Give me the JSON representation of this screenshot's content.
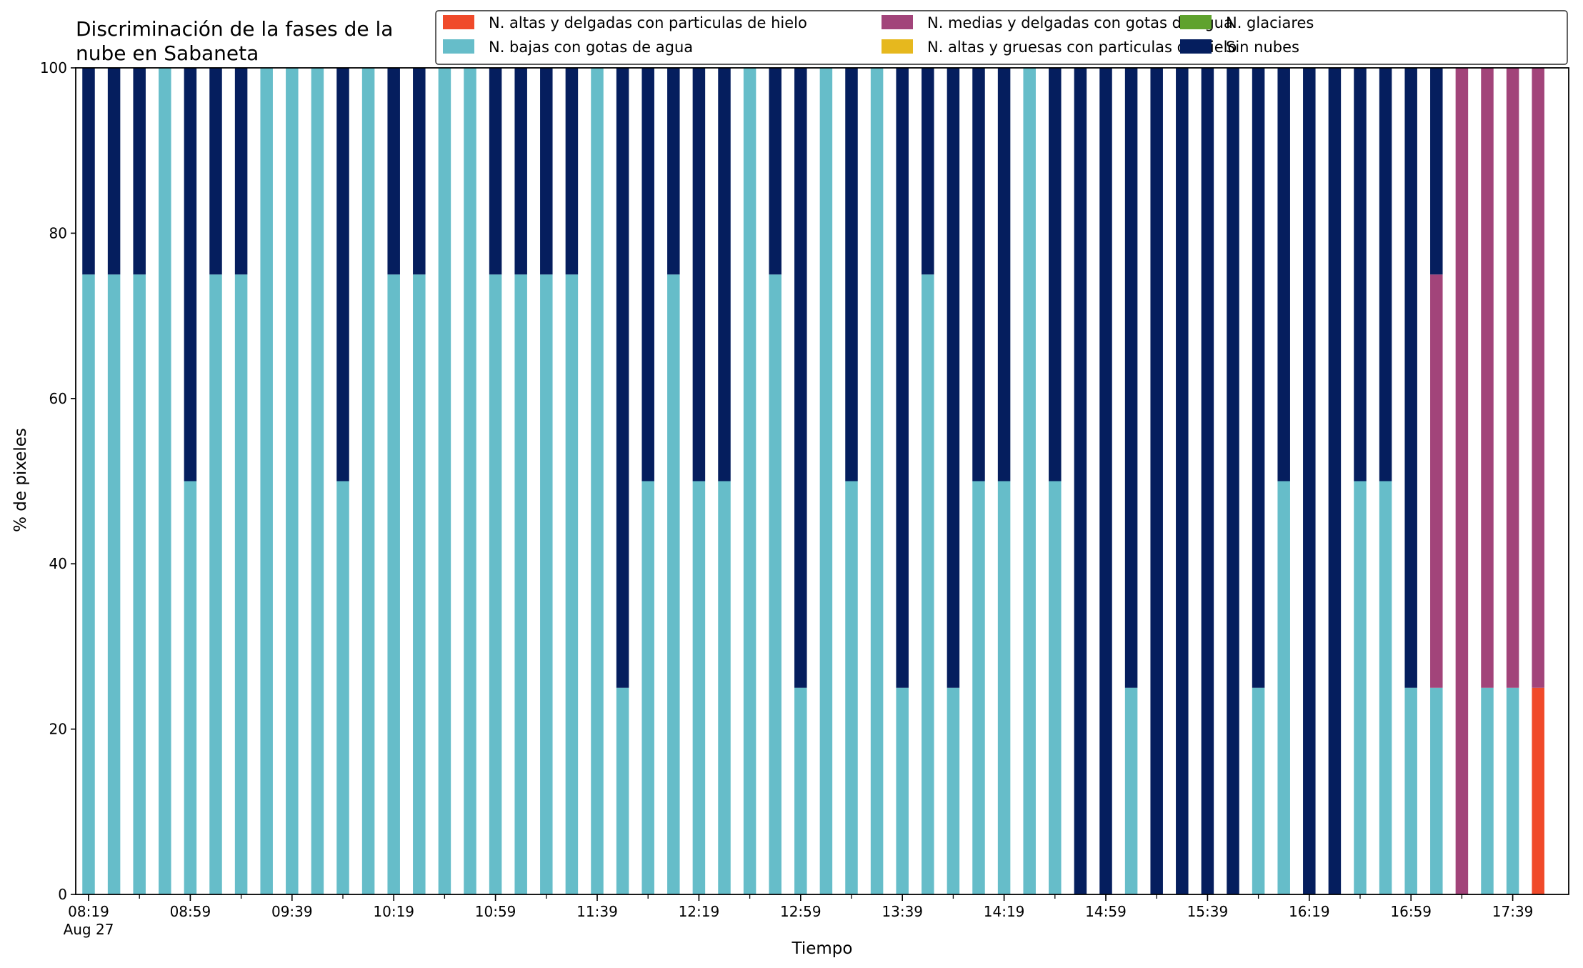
{
  "chart_data": {
    "type": "bar",
    "stacked": true,
    "title_lines": [
      "Discriminación de la fases de la",
      "nube en Sabaneta"
    ],
    "xlabel": "Tiempo",
    "ylabel": "% de pixeles",
    "ylim": [
      0,
      100
    ],
    "yticks": [
      "0",
      "20",
      "40",
      "60",
      "80",
      "100"
    ],
    "legend_position": "top-right",
    "categories": [
      "08:19",
      "08:29",
      "08:39",
      "08:49",
      "08:59",
      "09:09",
      "09:19",
      "09:29",
      "09:39",
      "09:49",
      "09:59",
      "10:09",
      "10:19",
      "10:29",
      "10:39",
      "10:49",
      "10:59",
      "11:09",
      "11:19",
      "11:29",
      "11:39",
      "11:49",
      "11:59",
      "12:09",
      "12:19",
      "12:29",
      "12:39",
      "12:49",
      "12:59",
      "13:09",
      "13:19",
      "13:29",
      "13:39",
      "13:49",
      "13:59",
      "14:09",
      "14:19",
      "14:29",
      "14:39",
      "14:49",
      "14:59",
      "15:09",
      "15:19",
      "15:29",
      "15:39",
      "15:49",
      "15:59",
      "16:09",
      "16:19",
      "16:29",
      "16:39",
      "16:49",
      "16:59",
      "17:09",
      "17:19",
      "17:29",
      "17:39",
      "17:49"
    ],
    "xtick_labels": [
      {
        "label": "08:19",
        "sub": "Aug 27",
        "index": 0
      },
      {
        "label": "08:59",
        "index": 4
      },
      {
        "label": "09:39",
        "index": 8
      },
      {
        "label": "10:19",
        "index": 12
      },
      {
        "label": "10:59",
        "index": 16
      },
      {
        "label": "11:39",
        "index": 20
      },
      {
        "label": "12:19",
        "index": 24
      },
      {
        "label": "12:59",
        "index": 28
      },
      {
        "label": "13:39",
        "index": 32
      },
      {
        "label": "14:19",
        "index": 36
      },
      {
        "label": "14:59",
        "index": 40
      },
      {
        "label": "15:39",
        "index": 44
      },
      {
        "label": "16:19",
        "index": 48
      },
      {
        "label": "16:59",
        "index": 52
      },
      {
        "label": "17:39",
        "index": 56
      }
    ],
    "series": [
      {
        "name": "N. altas y delgadas con particulas de hielo",
        "color": "#f04a2a",
        "values": [
          0,
          0,
          0,
          0,
          0,
          0,
          0,
          0,
          0,
          0,
          0,
          0,
          0,
          0,
          0,
          0,
          0,
          0,
          0,
          0,
          0,
          0,
          0,
          0,
          0,
          0,
          0,
          0,
          0,
          0,
          0,
          0,
          0,
          0,
          0,
          0,
          0,
          0,
          0,
          0,
          0,
          0,
          0,
          0,
          0,
          0,
          0,
          0,
          0,
          0,
          0,
          0,
          0,
          0,
          0,
          0,
          0,
          25
        ]
      },
      {
        "name": "N. altas y gruesas con particulas de hielo",
        "color": "#e6b81e",
        "values": [
          0,
          0,
          0,
          0,
          0,
          0,
          0,
          0,
          0,
          0,
          0,
          0,
          0,
          0,
          0,
          0,
          0,
          0,
          0,
          0,
          0,
          0,
          0,
          0,
          0,
          0,
          0,
          0,
          0,
          0,
          0,
          0,
          0,
          0,
          0,
          0,
          0,
          0,
          0,
          0,
          0,
          0,
          0,
          0,
          0,
          0,
          0,
          0,
          0,
          0,
          0,
          0,
          0,
          0,
          0,
          0,
          0,
          0
        ]
      },
      {
        "name": "N. bajas con gotas de agua",
        "color": "#66bdc9",
        "values": [
          75,
          75,
          75,
          100,
          50,
          75,
          75,
          100,
          100,
          100,
          50,
          100,
          75,
          75,
          100,
          100,
          75,
          75,
          75,
          75,
          100,
          25,
          50,
          75,
          50,
          50,
          100,
          75,
          25,
          100,
          50,
          100,
          25,
          75,
          25,
          50,
          50,
          100,
          50,
          0,
          0,
          25,
          0,
          0,
          0,
          0,
          25,
          50,
          0,
          0,
          50,
          50,
          25,
          25,
          0,
          25,
          25,
          0
        ]
      },
      {
        "name": "N. glaciares",
        "color": "#5fa22e",
        "values": [
          0,
          0,
          0,
          0,
          0,
          0,
          0,
          0,
          0,
          0,
          0,
          0,
          0,
          0,
          0,
          0,
          0,
          0,
          0,
          0,
          0,
          0,
          0,
          0,
          0,
          0,
          0,
          0,
          0,
          0,
          0,
          0,
          0,
          0,
          0,
          0,
          0,
          0,
          0,
          0,
          0,
          0,
          0,
          0,
          0,
          0,
          0,
          0,
          0,
          0,
          0,
          0,
          0,
          0,
          0,
          0,
          0,
          0
        ]
      },
      {
        "name": "N. medias y delgadas con gotas de agua",
        "color": "#a2447a",
        "values": [
          0,
          0,
          0,
          0,
          0,
          0,
          0,
          0,
          0,
          0,
          0,
          0,
          0,
          0,
          0,
          0,
          0,
          0,
          0,
          0,
          0,
          0,
          0,
          0,
          0,
          0,
          0,
          0,
          0,
          0,
          0,
          0,
          0,
          0,
          0,
          0,
          0,
          0,
          0,
          0,
          0,
          0,
          0,
          0,
          0,
          0,
          0,
          0,
          0,
          0,
          0,
          0,
          0,
          50,
          100,
          75,
          75,
          75
        ]
      },
      {
        "name": "Sin nubes",
        "color": "#051e5e",
        "values": [
          25,
          25,
          25,
          0,
          50,
          25,
          25,
          0,
          0,
          0,
          50,
          0,
          25,
          25,
          0,
          0,
          25,
          25,
          25,
          25,
          0,
          75,
          50,
          25,
          50,
          50,
          0,
          25,
          75,
          0,
          50,
          0,
          75,
          25,
          75,
          50,
          50,
          0,
          50,
          100,
          100,
          75,
          100,
          100,
          100,
          100,
          75,
          50,
          100,
          100,
          50,
          50,
          75,
          25,
          0,
          0,
          0,
          0
        ]
      }
    ],
    "legend_order": [
      0,
      2,
      4,
      1,
      3,
      5
    ]
  }
}
